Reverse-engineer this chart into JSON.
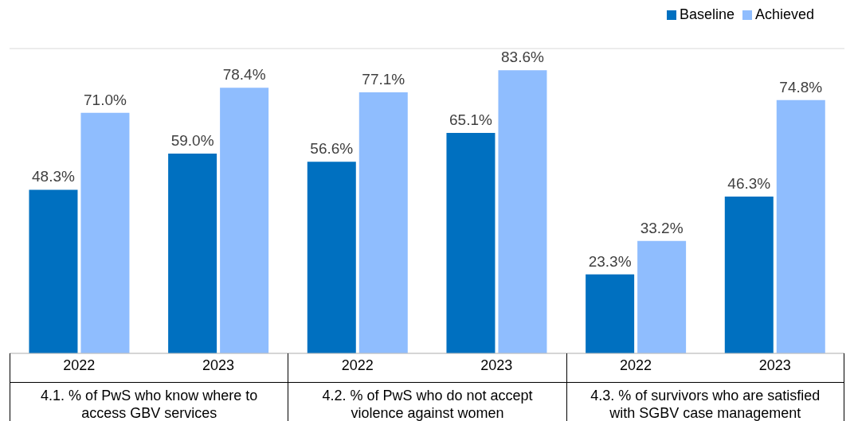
{
  "chart_data": {
    "type": "bar",
    "categories": [
      "2022",
      "2023",
      "2022",
      "2023",
      "2022",
      "2023"
    ],
    "series": [
      {
        "name": "Baseline",
        "color": "#0070c0",
        "values": [
          48.3,
          59.0,
          56.6,
          65.1,
          23.3,
          46.3
        ],
        "value_labels": [
          "48.3%",
          "59.0%",
          "56.6%",
          "65.1%",
          "23.3%",
          "46.3%"
        ]
      },
      {
        "name": "Achieved",
        "color": "#8fbdfe",
        "values": [
          71.0,
          78.4,
          77.1,
          83.6,
          33.2,
          74.8
        ],
        "value_labels": [
          "71.0%",
          "78.4%",
          "77.1%",
          "83.6%",
          "33.2%",
          "74.8%"
        ]
      }
    ],
    "annotations": [
      "4.1. % of PwS who know where to access GBV services",
      "4.2. %  of PwS who do not accept violence against women",
      "4.3. % of survivors who are satisfied with SGBV case management"
    ],
    "ylim": [
      0,
      90
    ],
    "grid": "y",
    "legend": "top right",
    "tick_labels": "x"
  }
}
